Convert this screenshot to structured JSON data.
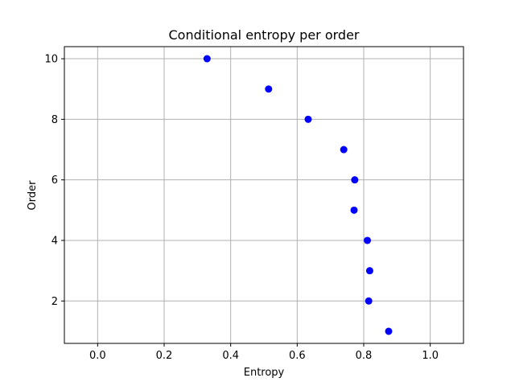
{
  "chart_data": {
    "type": "scatter",
    "title": "Conditional entropy per order",
    "xlabel": "Entropy",
    "ylabel": "Order",
    "xlim": [
      -0.1,
      1.1
    ],
    "ylim": [
      0.6,
      10.4
    ],
    "x_ticks": [
      0.0,
      0.2,
      0.4,
      0.6,
      0.8,
      1.0
    ],
    "x_tick_labels": [
      "0.0",
      "0.2",
      "0.4",
      "0.6",
      "0.8",
      "1.0"
    ],
    "y_ticks": [
      2,
      4,
      6,
      8,
      10
    ],
    "y_tick_labels": [
      "2",
      "4",
      "6",
      "8",
      "10"
    ],
    "grid": true,
    "point_color": "#0000ff",
    "grid_color": "#b0b0b0",
    "points": [
      {
        "x": 0.875,
        "y": 1
      },
      {
        "x": 0.815,
        "y": 2
      },
      {
        "x": 0.818,
        "y": 3
      },
      {
        "x": 0.811,
        "y": 4
      },
      {
        "x": 0.771,
        "y": 5
      },
      {
        "x": 0.773,
        "y": 6
      },
      {
        "x": 0.74,
        "y": 7
      },
      {
        "x": 0.633,
        "y": 8
      },
      {
        "x": 0.514,
        "y": 9
      },
      {
        "x": 0.329,
        "y": 10
      }
    ]
  }
}
